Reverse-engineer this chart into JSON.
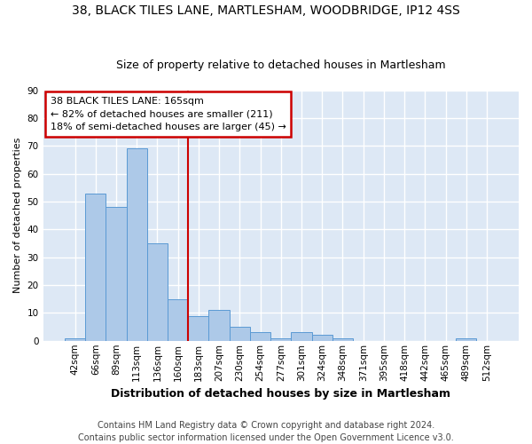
{
  "title1": "38, BLACK TILES LANE, MARTLESHAM, WOODBRIDGE, IP12 4SS",
  "title2": "Size of property relative to detached houses in Martlesham",
  "xlabel": "Distribution of detached houses by size in Martlesham",
  "ylabel": "Number of detached properties",
  "footnote": "Contains HM Land Registry data © Crown copyright and database right 2024.\nContains public sector information licensed under the Open Government Licence v3.0.",
  "bin_labels": [
    "42sqm",
    "66sqm",
    "89sqm",
    "113sqm",
    "136sqm",
    "160sqm",
    "183sqm",
    "207sqm",
    "230sqm",
    "254sqm",
    "277sqm",
    "301sqm",
    "324sqm",
    "348sqm",
    "371sqm",
    "395sqm",
    "418sqm",
    "442sqm",
    "465sqm",
    "489sqm",
    "512sqm"
  ],
  "bar_values": [
    1,
    53,
    48,
    69,
    35,
    15,
    9,
    11,
    5,
    3,
    1,
    3,
    2,
    1,
    0,
    0,
    0,
    0,
    0,
    1,
    0
  ],
  "bar_color": "#adc9e8",
  "bar_edge_color": "#5a9ad4",
  "vline_x": 5.5,
  "vline_color": "#cc0000",
  "annotation_text": "38 BLACK TILES LANE: 165sqm\n← 82% of detached houses are smaller (211)\n18% of semi-detached houses are larger (45) →",
  "annotation_box_color": "white",
  "annotation_box_edge_color": "#cc0000",
  "ylim": [
    0,
    90
  ],
  "yticks": [
    0,
    10,
    20,
    30,
    40,
    50,
    60,
    70,
    80,
    90
  ],
  "background_color": "#dde8f5",
  "grid_color": "white",
  "title1_fontsize": 10,
  "title2_fontsize": 9,
  "xlabel_fontsize": 9,
  "ylabel_fontsize": 8,
  "footnote_fontsize": 7,
  "annot_fontsize": 8,
  "tick_fontsize": 7.5
}
